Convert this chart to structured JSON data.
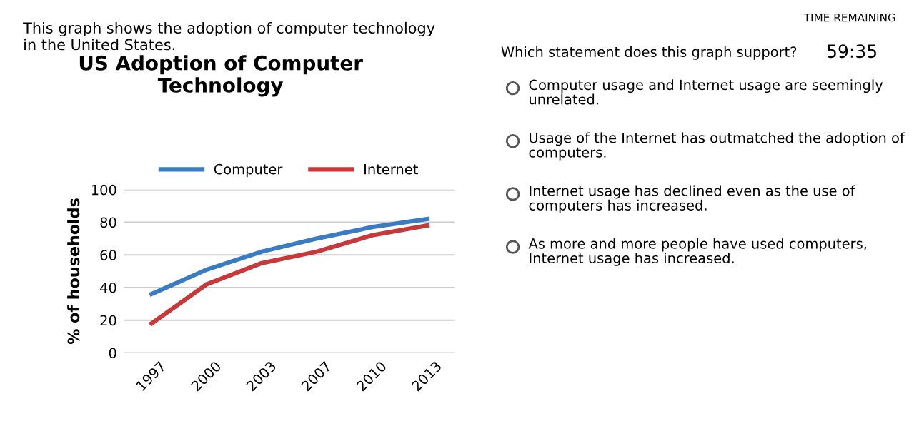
{
  "chart_data": {
    "type": "line",
    "title": "US Adoption of Computer\nTechnology",
    "ylabel": "% of households",
    "categories": [
      "1997",
      "2000",
      "2003",
      "2007",
      "2010",
      "2013"
    ],
    "series": [
      {
        "name": "Computer",
        "color": "#3a7cc4",
        "values": [
          36,
          51,
          62,
          70,
          77,
          82
        ]
      },
      {
        "name": "Internet",
        "color": "#c8383a",
        "values": [
          18,
          42,
          55,
          62,
          72,
          78
        ]
      }
    ],
    "ylim": [
      0,
      100
    ],
    "yticks": [
      0,
      20,
      40,
      60,
      80,
      100
    ],
    "grid": "y",
    "legend": "top",
    "marker": "none",
    "line_style": "solid",
    "annotations": [
      "TIME REMAINING",
      "59:35",
      "This graph shows the adoption of computer technology\nin the United States.",
      "Which statement does this graph support?",
      "Computer usage and Internet usage are seemingly\nunrelated.",
      "Usage of the Internet has outmatched the adoption of\ncomputers.",
      "Internet usage has declined even as the use of\ncomputers has increased.",
      "As more and more people have used computers,\nInternet usage has increased."
    ]
  }
}
